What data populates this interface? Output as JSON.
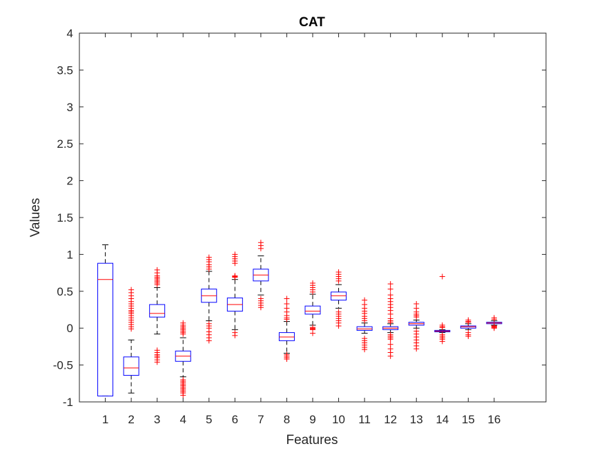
{
  "chart_data": {
    "type": "boxplot",
    "title": "CAT",
    "xlabel": "Features",
    "ylabel": "Values",
    "ylim": [
      -1,
      4
    ],
    "yticks": [
      "-1",
      "-0.5",
      "0",
      "0.5",
      "1",
      "1.5",
      "2",
      "2.5",
      "3",
      "3.5",
      "4"
    ],
    "xlim": [
      0,
      18
    ],
    "categories": [
      "1",
      "2",
      "3",
      "4",
      "5",
      "6",
      "7",
      "8",
      "9",
      "10",
      "11",
      "12",
      "13",
      "14",
      "15",
      "16"
    ],
    "colors": {
      "box": "#0000ff",
      "median": "#ff0000",
      "whisker": "#000000",
      "outlier": "#ff0000",
      "axis": "#262626"
    },
    "boxes": [
      {
        "q1": -0.92,
        "median": 0.66,
        "q3": 0.88,
        "lower": -0.92,
        "upper": 1.13,
        "outliers": []
      },
      {
        "q1": -0.64,
        "median": -0.54,
        "q3": -0.39,
        "lower": -0.88,
        "upper": -0.16,
        "outliers": [
          0.52,
          0.48,
          0.44,
          0.4,
          0.36,
          0.33,
          0.3,
          0.27,
          0.24,
          0.22,
          0.2,
          0.17,
          0.14,
          0.11,
          0.08,
          0.05,
          0.02,
          -0.01
        ]
      },
      {
        "q1": 0.15,
        "median": 0.2,
        "q3": 0.32,
        "lower": -0.08,
        "upper": 0.55,
        "outliers": [
          0.79,
          0.75,
          0.71,
          0.69,
          0.67,
          0.65,
          0.63,
          0.61,
          0.59,
          -0.3,
          -0.33,
          -0.36,
          -0.38,
          -0.4,
          -0.43,
          -0.46
        ]
      },
      {
        "q1": -0.45,
        "median": -0.38,
        "q3": -0.31,
        "lower": -0.66,
        "upper": -0.13,
        "outliers": [
          0.07,
          0.04,
          0.02,
          0.0,
          -0.02,
          -0.04,
          -0.06,
          -0.08,
          -0.7,
          -0.72,
          -0.74,
          -0.76,
          -0.78,
          -0.8,
          -0.82,
          -0.84,
          -0.86,
          -0.88,
          -0.91
        ]
      },
      {
        "q1": 0.35,
        "median": 0.44,
        "q3": 0.53,
        "lower": 0.1,
        "upper": 0.77,
        "outliers": [
          0.96,
          0.93,
          0.9,
          0.86,
          0.83,
          0.8,
          0.06,
          0.03,
          0.0,
          -0.05,
          -0.09,
          -0.13,
          -0.17
        ]
      },
      {
        "q1": 0.23,
        "median": 0.32,
        "q3": 0.41,
        "lower": -0.02,
        "upper": 0.66,
        "outliers": [
          1.0,
          0.97,
          0.94,
          0.91,
          0.88,
          0.71,
          0.7,
          0.69,
          -0.06,
          -0.1
        ]
      },
      {
        "q1": 0.64,
        "median": 0.72,
        "q3": 0.8,
        "lower": 0.45,
        "upper": 0.98,
        "outliers": [
          1.16,
          1.12,
          1.08,
          0.4,
          0.37,
          0.34,
          0.31,
          0.28
        ]
      },
      {
        "q1": -0.17,
        "median": -0.12,
        "q3": -0.06,
        "lower": -0.34,
        "upper": 0.09,
        "outliers": [
          0.4,
          0.33,
          0.27,
          0.22,
          0.17,
          0.14,
          0.12,
          -0.36,
          -0.38,
          -0.4,
          -0.42
        ]
      },
      {
        "q1": 0.19,
        "median": 0.23,
        "q3": 0.3,
        "lower": 0.04,
        "upper": 0.46,
        "outliers": [
          0.61,
          0.58,
          0.55,
          0.52,
          0.49,
          0.01,
          0.0,
          -0.01,
          -0.02,
          -0.07
        ]
      },
      {
        "q1": 0.38,
        "median": 0.44,
        "q3": 0.49,
        "lower": 0.27,
        "upper": 0.59,
        "outliers": [
          0.76,
          0.73,
          0.7,
          0.67,
          0.64,
          0.22,
          0.19,
          0.16,
          0.13,
          0.1,
          0.07,
          0.03
        ]
      },
      {
        "q1": -0.03,
        "median": -0.01,
        "q3": 0.02,
        "lower": -0.07,
        "upper": 0.07,
        "outliers": [
          0.38,
          0.32,
          0.27,
          0.23,
          0.2,
          0.16,
          0.13,
          0.1,
          -0.14,
          -0.17,
          -0.2,
          -0.23,
          -0.26,
          -0.29
        ]
      },
      {
        "q1": -0.02,
        "median": 0.0,
        "q3": 0.02,
        "lower": -0.06,
        "upper": 0.06,
        "outliers": [
          0.6,
          0.53,
          0.45,
          0.4,
          0.36,
          0.32,
          0.28,
          0.24,
          0.19,
          0.13,
          0.1,
          0.08,
          -0.09,
          -0.11,
          -0.13,
          -0.15,
          -0.22,
          -0.28,
          -0.33,
          -0.38
        ]
      },
      {
        "q1": 0.04,
        "median": 0.06,
        "q3": 0.08,
        "lower": 0.0,
        "upper": 0.11,
        "outliers": [
          0.33,
          0.27,
          0.22,
          0.19,
          0.17,
          0.15,
          -0.04,
          -0.08,
          -0.12,
          -0.16,
          -0.2,
          -0.24,
          -0.28
        ]
      },
      {
        "q1": -0.05,
        "median": -0.04,
        "q3": -0.03,
        "lower": -0.06,
        "upper": -0.02,
        "outliers": [
          0.7,
          0.04,
          0.02,
          0.01,
          -0.09,
          -0.11,
          -0.13,
          -0.15,
          -0.18
        ]
      },
      {
        "q1": 0.0,
        "median": 0.02,
        "q3": 0.03,
        "lower": -0.02,
        "upper": 0.06,
        "outliers": [
          0.11,
          0.09,
          0.08,
          -0.06,
          -0.09,
          -0.11
        ]
      },
      {
        "q1": 0.06,
        "median": 0.07,
        "q3": 0.08,
        "lower": 0.04,
        "upper": 0.1,
        "outliers": [
          0.14,
          0.12,
          0.03,
          0.02,
          0.01,
          0.0
        ]
      }
    ]
  }
}
